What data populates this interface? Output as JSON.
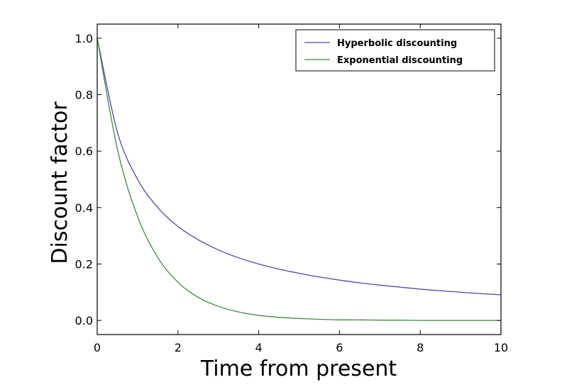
{
  "chart_data": {
    "type": "line",
    "xlabel": "Time from present",
    "ylabel": "Discount factor",
    "xlim": [
      0,
      10
    ],
    "ylim": [
      -0.05,
      1.05
    ],
    "x_ticks": [
      0,
      2,
      4,
      6,
      8,
      10
    ],
    "y_ticks": [
      0.0,
      0.2,
      0.4,
      0.6,
      0.8,
      1.0
    ],
    "x_tick_labels": [
      "0",
      "2",
      "4",
      "6",
      "8",
      "10"
    ],
    "y_tick_labels": [
      "0.0",
      "0.2",
      "0.4",
      "0.6",
      "0.8",
      "1.0"
    ],
    "grid": false,
    "legend_position": "top-right",
    "x": [
      0,
      0.5,
      1,
      1.5,
      2,
      2.5,
      3,
      3.5,
      4,
      4.5,
      5,
      5.5,
      6,
      6.5,
      7,
      7.5,
      8,
      8.5,
      9,
      9.5,
      10
    ],
    "series": [
      {
        "name": "Hyperbolic discounting",
        "color": "#4a4aa8",
        "values": [
          1.0,
          0.667,
          0.5,
          0.4,
          0.333,
          0.286,
          0.25,
          0.222,
          0.2,
          0.182,
          0.167,
          0.154,
          0.143,
          0.133,
          0.125,
          0.118,
          0.111,
          0.105,
          0.1,
          0.095,
          0.091
        ]
      },
      {
        "name": "Exponential discounting",
        "color": "#3f8a3f",
        "values": [
          1.0,
          0.607,
          0.368,
          0.223,
          0.135,
          0.082,
          0.05,
          0.03,
          0.018,
          0.011,
          0.007,
          0.004,
          0.002,
          0.002,
          0.001,
          0.001,
          0.0,
          0.0,
          0.0,
          0.0,
          0.0
        ]
      }
    ]
  }
}
